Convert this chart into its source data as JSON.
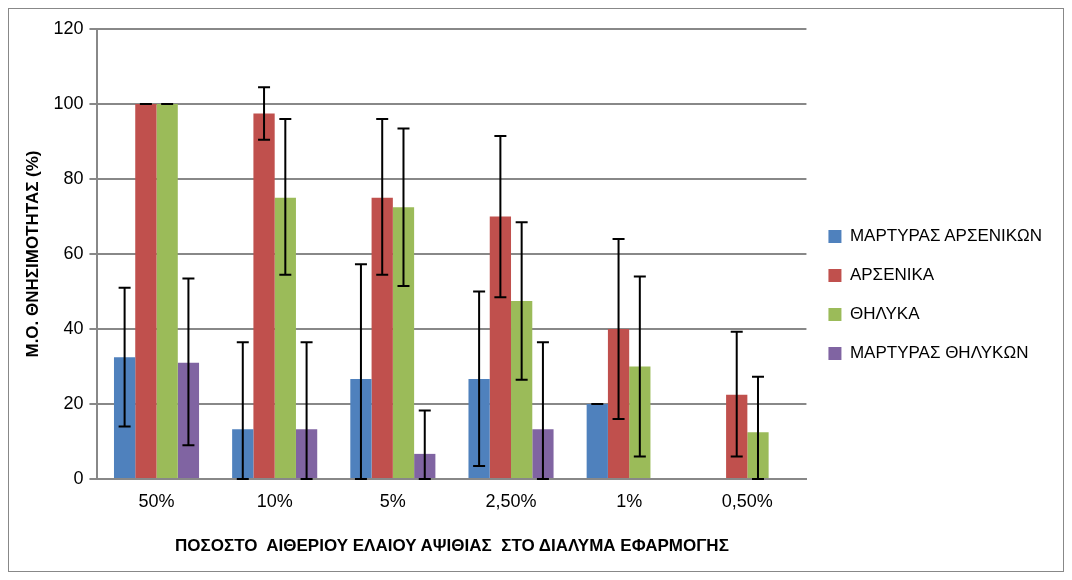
{
  "chart_data": {
    "type": "bar",
    "xlabel": "ΠΟΣΟΣΤΟ  ΑΙΘΕΡΙΟΥ ΕΛΑΙΟΥ ΑΨΙΘΙΑΣ  ΣΤΟ ΔΙΑΛΥΜΑ ΕΦΑΡΜΟΓΗΣ",
    "ylabel": "Μ.Ο. ΘΝΗΣΙΜΟΤΗΤΑΣ (%)",
    "categories": [
      "50%",
      "10%",
      "5%",
      "2,50%",
      "1%",
      "0,50%"
    ],
    "series": [
      {
        "name": "ΜΑΡΤΥΡΑΣ ΑΡΣΕΝΙΚΩΝ",
        "color": "#4f81bd",
        "values": [
          32.5,
          13.3,
          26.7,
          26.7,
          20,
          null
        ],
        "errors": [
          [
            14,
            51
          ],
          [
            0,
            36.5
          ],
          [
            0,
            57.3
          ],
          [
            3.5,
            50
          ],
          0,
          null
        ]
      },
      {
        "name": "ΑΡΣΕΝΙΚΑ",
        "color": "#c0504d",
        "values": [
          100,
          97.5,
          75,
          70,
          40,
          22.5
        ],
        "errors": [
          0,
          [
            90.5,
            104.5
          ],
          [
            54.5,
            96
          ],
          [
            48.5,
            91.5
          ],
          [
            16,
            64
          ],
          [
            6,
            39.3
          ]
        ]
      },
      {
        "name": "ΘΗΛΥΚΑ",
        "color": "#9bbb59",
        "values": [
          100,
          75,
          72.5,
          47.5,
          30,
          12.5
        ],
        "errors": [
          0,
          [
            54.5,
            96
          ],
          [
            51.5,
            93.5
          ],
          [
            26.5,
            68.5
          ],
          [
            6,
            54
          ],
          [
            0,
            27.3
          ]
        ]
      },
      {
        "name": "ΜΑΡΤΥΡΑΣ ΘΗΛΥΚΩΝ",
        "color": "#8064a2",
        "values": [
          31,
          13.3,
          6.7,
          13.3,
          null,
          null
        ],
        "errors": [
          [
            9,
            53.5
          ],
          [
            0,
            36.5
          ],
          [
            0,
            18.3
          ],
          [
            0,
            36.5
          ],
          null,
          null
        ]
      }
    ],
    "ylim": [
      0,
      120
    ],
    "yticks": [
      0,
      20,
      40,
      60,
      80,
      100,
      120
    ],
    "grid": "y",
    "legend": "right"
  }
}
